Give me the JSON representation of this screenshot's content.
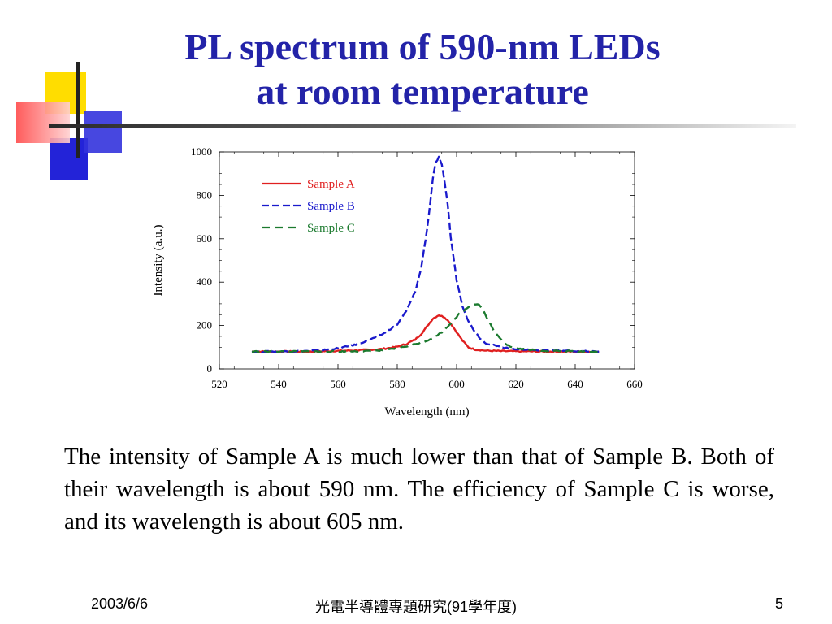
{
  "slide": {
    "title_line1": "PL spectrum of 590-nm LEDs",
    "title_line2": "at room temperature",
    "body": "The intensity of Sample A is much lower than that of Sample B. Both of their wavelength is about 590 nm. The efficiency of Sample C is worse, and its wavelength is about 605 nm.",
    "footer_date": "2003/6/6",
    "footer_center": "光電半導體專題研究(91學年度)",
    "footer_page": "5"
  },
  "chart_data": {
    "type": "line",
    "xlabel": "Wavelength (nm)",
    "ylabel": "Intensity (a.u.)",
    "xlim": [
      520,
      660
    ],
    "ylim": [
      0,
      1000
    ],
    "xticks": [
      520,
      540,
      560,
      580,
      600,
      620,
      640,
      660
    ],
    "yticks": [
      0,
      200,
      400,
      600,
      800,
      1000
    ],
    "legend_position": "top-left",
    "series": [
      {
        "name": "Sample A",
        "color": "#e02020",
        "dash": "solid",
        "x": [
          531,
          540,
          550,
          560,
          565,
          570,
          575,
          580,
          583,
          586,
          588,
          590,
          592,
          594,
          596,
          598,
          600,
          602,
          604,
          606,
          610,
          615,
          620,
          630,
          640,
          648
        ],
        "y": [
          80,
          80,
          80,
          83,
          85,
          88,
          92,
          102,
          115,
          135,
          160,
          195,
          232,
          248,
          238,
          210,
          170,
          130,
          100,
          90,
          84,
          82,
          81,
          80,
          80,
          79
        ]
      },
      {
        "name": "Sample B",
        "color": "#1a1acc",
        "dash": "dash",
        "x": [
          531,
          540,
          550,
          555,
          560,
          565,
          570,
          575,
          580,
          583,
          586,
          588,
          590,
          591,
          592,
          593,
          594,
          595,
          596,
          597,
          598,
          600,
          602,
          604,
          606,
          608,
          610,
          615,
          620,
          625,
          630,
          640,
          648
        ],
        "y": [
          80,
          80,
          83,
          87,
          95,
          108,
          130,
          160,
          205,
          265,
          355,
          460,
          640,
          750,
          880,
          950,
          975,
          940,
          860,
          760,
          610,
          410,
          290,
          220,
          175,
          140,
          118,
          100,
          92,
          88,
          86,
          82,
          80
        ]
      },
      {
        "name": "Sample C",
        "color": "#1b7a2e",
        "dash": "longdash",
        "x": [
          531,
          540,
          550,
          560,
          570,
          575,
          580,
          585,
          590,
          593,
          596,
          599,
          601,
          603,
          605,
          607,
          608,
          609,
          610,
          612,
          614,
          616,
          618,
          620,
          625,
          630,
          640,
          648
        ],
        "y": [
          80,
          80,
          80,
          80,
          82,
          85,
          95,
          110,
          130,
          150,
          180,
          225,
          255,
          275,
          295,
          300,
          290,
          270,
          240,
          190,
          150,
          120,
          105,
          95,
          88,
          84,
          81,
          79
        ]
      }
    ]
  }
}
